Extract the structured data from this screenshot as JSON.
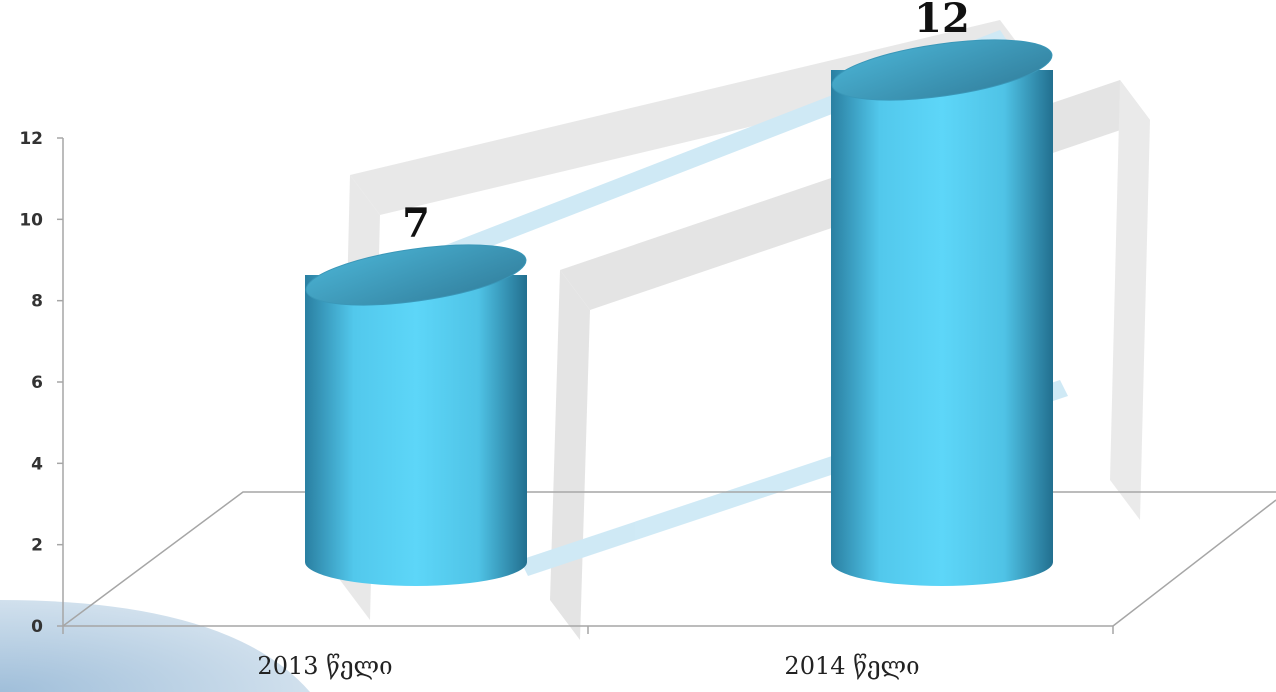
{
  "chart_data": {
    "type": "bar",
    "style": "3d-cylinder",
    "categories": [
      "2013 წელი",
      "2014 წელი"
    ],
    "values": [
      7,
      12
    ],
    "data_labels": [
      "7",
      "12"
    ],
    "yticks": [
      "0",
      "2",
      "4",
      "6",
      "8",
      "10",
      "12"
    ],
    "ylim": [
      0,
      12
    ],
    "grid": false,
    "colors": {
      "bar_side": "#52c8ec",
      "bar_top": "#3d9fc0",
      "bar_edge": "#1f6f8c",
      "axis": "#a6a6a6",
      "watermark": "#c7c7c7",
      "watermark_accent": "#9fd3ea"
    }
  }
}
